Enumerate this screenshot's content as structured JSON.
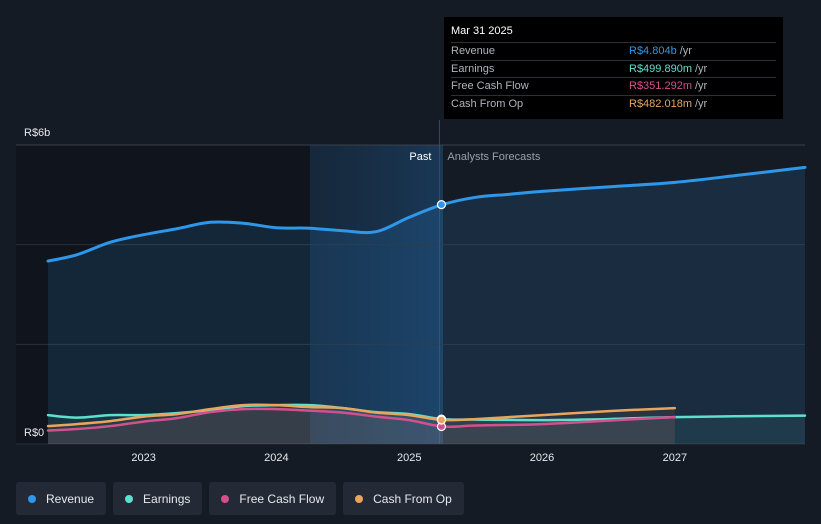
{
  "chart_data": {
    "type": "line",
    "y_axis": {
      "top_label": "R$6b",
      "bottom_label": "R$0",
      "ylim": [
        0,
        6
      ]
    },
    "x_ticks": [
      "2023",
      "2024",
      "2025",
      "2026",
      "2027"
    ],
    "xlim": [
      2022.25,
      2027.98
    ],
    "past_divider": 2025.25,
    "past_label": "Past",
    "forecast_label": "Analysts Forecasts",
    "series": [
      {
        "name": "Revenue",
        "color": "#2f97ea",
        "points": [
          [
            2022.28,
            3.67
          ],
          [
            2022.5,
            3.8
          ],
          [
            2022.75,
            4.05
          ],
          [
            2023.0,
            4.2
          ],
          [
            2023.25,
            4.32
          ],
          [
            2023.5,
            4.45
          ],
          [
            2023.75,
            4.43
          ],
          [
            2024.0,
            4.34
          ],
          [
            2024.25,
            4.33
          ],
          [
            2024.5,
            4.28
          ],
          [
            2024.75,
            4.26
          ],
          [
            2025.0,
            4.55
          ],
          [
            2025.25,
            4.804
          ],
          [
            2025.5,
            4.95
          ],
          [
            2025.75,
            5.01
          ],
          [
            2026.0,
            5.07
          ],
          [
            2026.5,
            5.16
          ],
          [
            2027.0,
            5.25
          ],
          [
            2027.5,
            5.4
          ],
          [
            2027.98,
            5.55
          ]
        ]
      },
      {
        "name": "Earnings",
        "color": "#5ee0cf",
        "points": [
          [
            2022.28,
            0.58
          ],
          [
            2022.5,
            0.53
          ],
          [
            2022.75,
            0.58
          ],
          [
            2023.0,
            0.58
          ],
          [
            2023.25,
            0.62
          ],
          [
            2023.5,
            0.68
          ],
          [
            2023.75,
            0.76
          ],
          [
            2024.0,
            0.78
          ],
          [
            2024.25,
            0.78
          ],
          [
            2024.5,
            0.72
          ],
          [
            2024.75,
            0.64
          ],
          [
            2025.0,
            0.6
          ],
          [
            2025.25,
            0.4999
          ],
          [
            2025.5,
            0.49
          ],
          [
            2026.0,
            0.48
          ],
          [
            2026.5,
            0.5
          ],
          [
            2027.0,
            0.54
          ],
          [
            2027.98,
            0.57
          ]
        ]
      },
      {
        "name": "Free Cash Flow",
        "color": "#d3508f",
        "points": [
          [
            2022.28,
            0.27
          ],
          [
            2022.5,
            0.3
          ],
          [
            2022.75,
            0.36
          ],
          [
            2023.0,
            0.45
          ],
          [
            2023.25,
            0.52
          ],
          [
            2023.5,
            0.64
          ],
          [
            2023.75,
            0.7
          ],
          [
            2024.0,
            0.7
          ],
          [
            2024.25,
            0.67
          ],
          [
            2024.5,
            0.63
          ],
          [
            2024.75,
            0.55
          ],
          [
            2025.0,
            0.48
          ],
          [
            2025.25,
            0.3513
          ],
          [
            2025.5,
            0.37
          ],
          [
            2026.0,
            0.4
          ],
          [
            2026.5,
            0.47
          ],
          [
            2027.0,
            0.54
          ]
        ]
      },
      {
        "name": "Cash From Op",
        "color": "#e9a55b",
        "points": [
          [
            2022.28,
            0.36
          ],
          [
            2022.5,
            0.4
          ],
          [
            2022.75,
            0.46
          ],
          [
            2023.0,
            0.55
          ],
          [
            2023.25,
            0.6
          ],
          [
            2023.5,
            0.7
          ],
          [
            2023.75,
            0.78
          ],
          [
            2024.0,
            0.78
          ],
          [
            2024.25,
            0.74
          ],
          [
            2024.5,
            0.72
          ],
          [
            2024.75,
            0.63
          ],
          [
            2025.0,
            0.58
          ],
          [
            2025.25,
            0.482
          ],
          [
            2025.5,
            0.5
          ],
          [
            2026.0,
            0.58
          ],
          [
            2026.5,
            0.66
          ],
          [
            2027.0,
            0.72
          ]
        ]
      }
    ],
    "grid": true,
    "legend_position": "bottom-left"
  },
  "tooltip": {
    "date": "Mar 31 2025",
    "rows": [
      {
        "label": "Revenue",
        "value": "R$4.804b",
        "unit": "/yr",
        "color": "#2f97ea"
      },
      {
        "label": "Earnings",
        "value": "R$499.890m",
        "unit": "/yr",
        "color": "#5ee0cf"
      },
      {
        "label": "Free Cash Flow",
        "value": "R$351.292m",
        "unit": "/yr",
        "color": "#d3508f"
      },
      {
        "label": "Cash From Op",
        "value": "R$482.018m",
        "unit": "/yr",
        "color": "#e9a55b"
      }
    ]
  },
  "legend": [
    {
      "label": "Revenue",
      "color": "#2f97ea"
    },
    {
      "label": "Earnings",
      "color": "#5ee0cf"
    },
    {
      "label": "Free Cash Flow",
      "color": "#d3508f"
    },
    {
      "label": "Cash From Op",
      "color": "#e9a55b"
    }
  ]
}
